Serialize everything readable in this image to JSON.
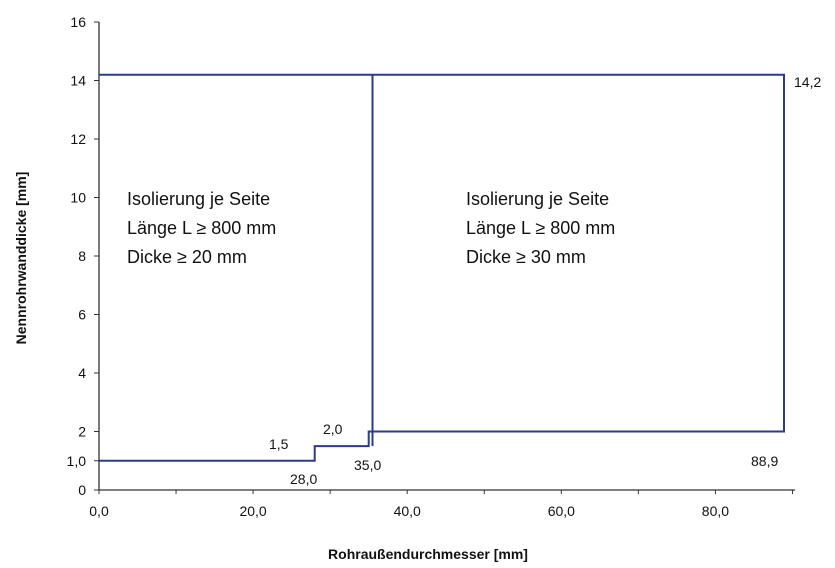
{
  "chart_data": {
    "type": "line",
    "xlabel": "Rohraußendurchmesser [mm]",
    "ylabel": "Nennrohrwanddicke [mm]",
    "xlim": [
      0,
      90
    ],
    "ylim": [
      0,
      16
    ],
    "x_ticks": [
      {
        "value": 0,
        "label": "0,0"
      },
      {
        "value": 20,
        "label": "20,0"
      },
      {
        "value": 40,
        "label": "40,0"
      },
      {
        "value": 60,
        "label": "60,0"
      },
      {
        "value": 80,
        "label": "80,0"
      }
    ],
    "y_ticks": [
      {
        "value": 0,
        "label": "0"
      },
      {
        "value": 1,
        "label": "1,0"
      },
      {
        "value": 2,
        "label": "2"
      },
      {
        "value": 4,
        "label": "4"
      },
      {
        "value": 6,
        "label": "6"
      },
      {
        "value": 8,
        "label": "8"
      },
      {
        "value": 10,
        "label": "10"
      },
      {
        "value": 12,
        "label": "12"
      },
      {
        "value": 14,
        "label": "14"
      },
      {
        "value": 16,
        "label": "16"
      }
    ],
    "series": [
      {
        "points": [
          {
            "x": 0,
            "y": 1.0
          },
          {
            "x": 28,
            "y": 1.0
          },
          {
            "x": 28,
            "y": 1.5
          },
          {
            "x": 35,
            "y": 1.5
          },
          {
            "x": 35,
            "y": 2.0
          },
          {
            "x": 88.9,
            "y": 2.0
          },
          {
            "x": 88.9,
            "y": 14.2
          },
          {
            "x": 0,
            "y": 14.2
          }
        ]
      },
      {
        "points": [
          {
            "x": 35.5,
            "y": 1.5
          },
          {
            "x": 35.5,
            "y": 14.2
          }
        ]
      }
    ],
    "annotations": [
      {
        "text": "14,2",
        "x": 88.9,
        "y": 14.2
      },
      {
        "text": "1,5",
        "x": 24,
        "y": 1.5
      },
      {
        "text": "28,0",
        "x": 28,
        "y": 1.0
      },
      {
        "text": "2,0",
        "x": 31.5,
        "y": 2.0
      },
      {
        "text": "35,0",
        "x": 35,
        "y": 2.0
      },
      {
        "text": "88,9",
        "x": 88.9,
        "y": 2.0
      }
    ],
    "regions": [
      {
        "lines": [
          "Isolierung je Seite",
          "Länge L ≥ 800 mm",
          "Dicke ≥ 20 mm"
        ]
      },
      {
        "lines": [
          "Isolierung je Seite",
          "Länge L ≥ 800 mm",
          "Dicke ≥ 30 mm"
        ]
      }
    ],
    "colors": {
      "line": "#2b3a8c",
      "axis": "#333333",
      "text": "#111111"
    }
  }
}
